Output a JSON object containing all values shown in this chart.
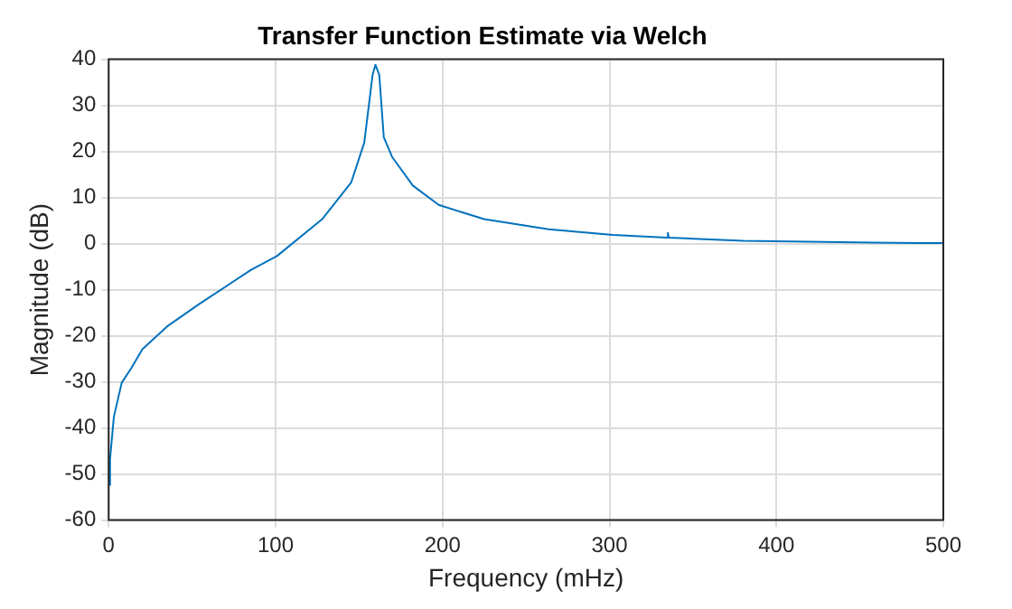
{
  "chart_data": {
    "type": "line",
    "title": "Transfer Function Estimate via Welch",
    "xlabel": "Frequency (mHz)",
    "ylabel": "Magnitude (dB)",
    "x": [
      0.5,
      0.8,
      3.1,
      7.8,
      13.6,
      20.2,
      34.9,
      54.3,
      85.3,
      100.8,
      127.9,
      145.3,
      153.1,
      158.1,
      159.8,
      162.1,
      164.8,
      169.8,
      182.2,
      197.7,
      224.9,
      263.6,
      302,
      334.5,
      335,
      335.5,
      380,
      457.4,
      500
    ],
    "series": [
      {
        "color": "#0072bd",
        "values": [
          -52.4,
          -46.8,
          -37.6,
          -30.2,
          -27,
          -22.9,
          -18,
          -13.1,
          -5.7,
          -2.7,
          5.3,
          13.3,
          21.9,
          36.6,
          38.8,
          36.6,
          23.1,
          18.8,
          12.6,
          8.4,
          5.3,
          3.1,
          1.9,
          1.3,
          2.3,
          1.3,
          0.6,
          0.2,
          0.1
        ]
      }
    ],
    "xlim": [
      0,
      500
    ],
    "xticks": [
      0,
      100,
      200,
      300,
      400,
      500
    ],
    "ylim": [
      -60,
      40
    ],
    "yticks": [
      -60,
      -50,
      -40,
      -30,
      -20,
      -10,
      0,
      10,
      20,
      30,
      40
    ],
    "grid": true,
    "legend": false,
    "marker": "none",
    "line_style": "solid"
  }
}
